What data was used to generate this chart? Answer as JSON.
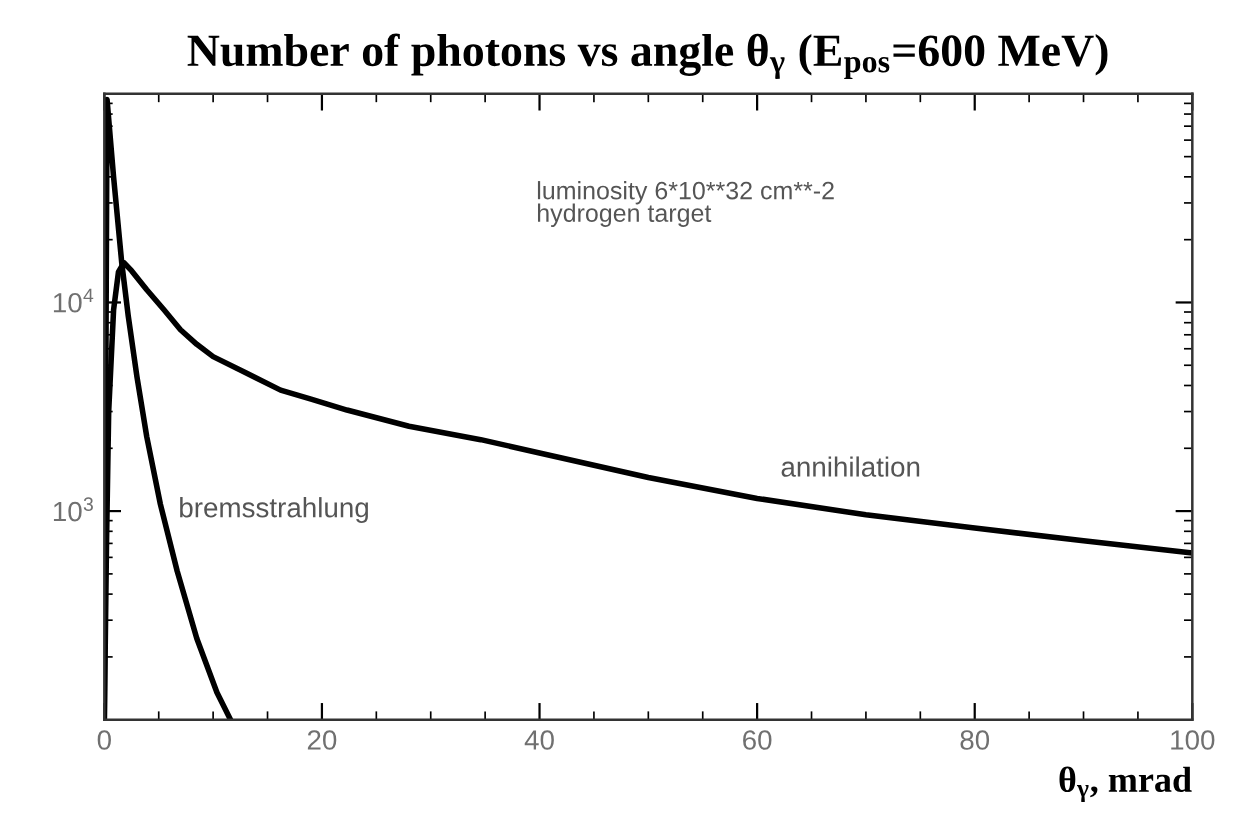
{
  "chart_data": {
    "type": "line",
    "title": "Number of photons vs angle θ$_{γ}$ (E$_{pos}$=600 MeV)",
    "xlabel": "θ$_{γ}$, mrad",
    "log": "y",
    "xlim": [
      0,
      100
    ],
    "xticks": [
      0,
      20,
      40,
      60,
      80,
      100
    ],
    "ylim": [
      100,
      100000
    ],
    "yticks": [
      {
        "value": 1000,
        "label": "10$^{3}$"
      },
      {
        "value": 10000,
        "label": "10$^{4}$"
      }
    ],
    "line_style": "solid",
    "annotations": [
      "luminosity 6*10**32 cm**-2",
      "hydrogen target"
    ],
    "series": [
      {
        "name": "bremsstrahlung",
        "color": "#000000",
        "x": [
          0,
          0.25,
          0.85,
          1.6,
          2.2,
          3.0,
          3.9,
          5.15,
          6.7,
          8.5,
          10.35,
          11.6
        ],
        "values": [
          100,
          94000,
          40000,
          15500,
          8600,
          4400,
          2270,
          1080,
          515,
          245,
          135,
          100
        ]
      },
      {
        "name": "annihilation",
        "color": "#000000",
        "x": [
          0,
          0.2,
          0.4,
          0.85,
          1.3,
          1.8,
          2.5,
          3.9,
          5.5,
          7,
          8.5,
          10,
          13,
          16.2,
          19,
          22.3,
          28,
          34.6,
          40,
          50,
          60,
          70,
          80,
          90,
          100
        ],
        "values": [
          100,
          700,
          3000,
          9200,
          14000,
          15500,
          14200,
          11500,
          9200,
          7400,
          6300,
          5500,
          4600,
          3800,
          3440,
          3050,
          2550,
          2200,
          1900,
          1450,
          1150,
          960,
          830,
          720,
          630
        ]
      }
    ]
  }
}
